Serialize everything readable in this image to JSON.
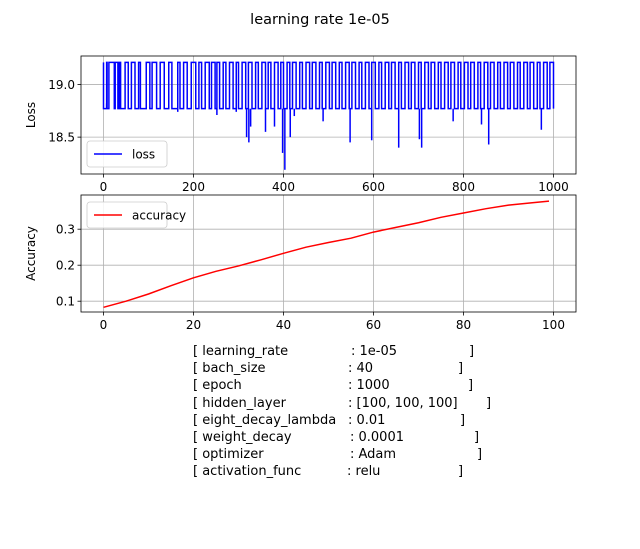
{
  "figure": {
    "title": "learning rate 1e-05"
  },
  "chart_data": [
    {
      "type": "line",
      "ylabel": "Loss",
      "xlabel": "",
      "xlim": [
        -50,
        1050
      ],
      "ylim": [
        18.15,
        19.27
      ],
      "xticks": [
        0,
        200,
        400,
        600,
        800,
        1000
      ],
      "yticks": [
        18.5,
        19.0
      ],
      "ytick_labels": [
        "18.5",
        "19.0"
      ],
      "grid": true,
      "legend": "lower-left",
      "series": [
        {
          "name": "loss",
          "color": "#0000ff",
          "baseline_high": 19.21,
          "baseline_low": 18.77,
          "x_range": [
            0,
            1000
          ],
          "spikes": [
            {
              "x": 318,
              "y": 18.5
            },
            {
              "x": 323,
              "y": 18.45
            },
            {
              "x": 327,
              "y": 18.6
            },
            {
              "x": 360,
              "y": 18.55
            },
            {
              "x": 380,
              "y": 18.6
            },
            {
              "x": 398,
              "y": 18.35
            },
            {
              "x": 403,
              "y": 18.19
            },
            {
              "x": 415,
              "y": 18.5
            },
            {
              "x": 424,
              "y": 18.7
            },
            {
              "x": 488,
              "y": 18.65
            },
            {
              "x": 548,
              "y": 18.45
            },
            {
              "x": 596,
              "y": 18.47
            },
            {
              "x": 656,
              "y": 18.4
            },
            {
              "x": 702,
              "y": 18.48
            },
            {
              "x": 707,
              "y": 18.4
            },
            {
              "x": 777,
              "y": 18.65
            },
            {
              "x": 840,
              "y": 18.62
            },
            {
              "x": 856,
              "y": 18.43
            },
            {
              "x": 973,
              "y": 18.57
            },
            {
              "x": 7,
              "y": 18.82
            },
            {
              "x": 103,
              "y": 18.78
            },
            {
              "x": 165,
              "y": 18.74
            },
            {
              "x": 252,
              "y": 18.71
            },
            {
              "x": 295,
              "y": 18.74
            }
          ]
        }
      ]
    },
    {
      "type": "line",
      "ylabel": "Accuracy",
      "xlabel": "",
      "xlim": [
        -5,
        105
      ],
      "ylim": [
        0.07,
        0.395
      ],
      "xticks": [
        0,
        20,
        40,
        60,
        80,
        100
      ],
      "yticks": [
        0.1,
        0.2,
        0.3
      ],
      "ytick_labels": [
        "0.1",
        "0.2",
        "0.3"
      ],
      "grid": true,
      "legend": "top-left",
      "series": [
        {
          "name": "accuracy",
          "color": "#ff0000",
          "x": [
            0,
            5,
            10,
            15,
            20,
            25,
            30,
            35,
            40,
            45,
            50,
            55,
            60,
            65,
            70,
            75,
            80,
            85,
            90,
            95,
            99
          ],
          "values": [
            0.083,
            0.1,
            0.12,
            0.143,
            0.165,
            0.183,
            0.198,
            0.215,
            0.233,
            0.25,
            0.263,
            0.275,
            0.292,
            0.305,
            0.318,
            0.333,
            0.345,
            0.357,
            0.367,
            0.373,
            0.378
          ]
        }
      ]
    }
  ],
  "config": [
    {
      "key": "[ learning_rate",
      "value": ": 1e-05"
    },
    {
      "key": "[ bach_size",
      "value": ": 40"
    },
    {
      "key": "[ epoch",
      "value": ": 1000"
    },
    {
      "key": "[ hidden_layer",
      "value": ": [100, 100, 100]"
    },
    {
      "key": "[ eight_decay_lambda",
      "value": ": 0.01"
    },
    {
      "key": "[ weight_decay",
      "value": ": 0.0001"
    },
    {
      "key": "[ optimizer",
      "value": ": Adam"
    },
    {
      "key": "[ activation_func",
      "value": ": relu"
    }
  ]
}
